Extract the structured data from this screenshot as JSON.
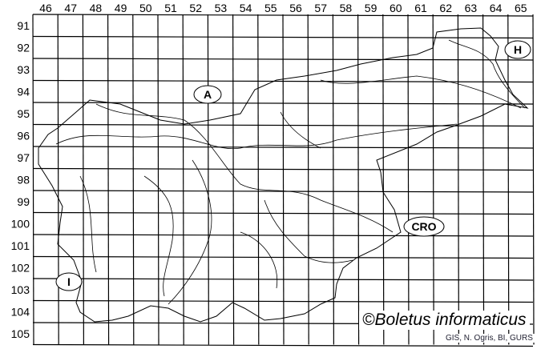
{
  "columns": [
    "46",
    "47",
    "48",
    "49",
    "50",
    "51",
    "52",
    "53",
    "54",
    "55",
    "56",
    "57",
    "58",
    "59",
    "60",
    "61",
    "62",
    "63",
    "64",
    "65"
  ],
  "rows": [
    "91",
    "92",
    "93",
    "94",
    "95",
    "96",
    "97",
    "98",
    "99",
    "100",
    "101",
    "102",
    "103",
    "104",
    "105"
  ],
  "regions": [
    {
      "label": "A"
    },
    {
      "label": "H"
    },
    {
      "label": "CRO"
    },
    {
      "label": "I"
    }
  ],
  "credit": "©Boletus informaticus",
  "source": "GIS, N. Ogris, BI, GURS"
}
